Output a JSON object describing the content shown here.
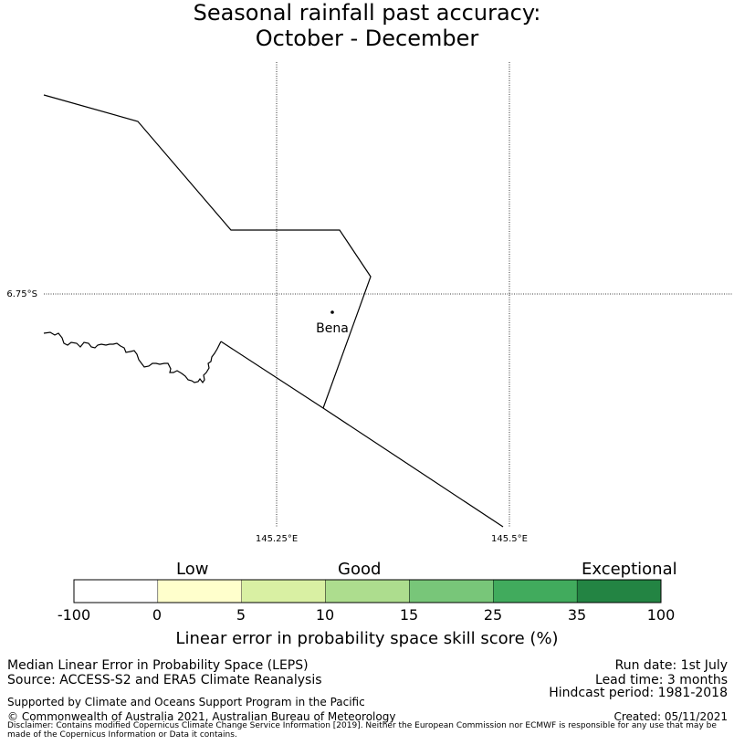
{
  "title": {
    "line1": "Seasonal rainfall past accuracy:",
    "line2": "October - December"
  },
  "map": {
    "lat_label": "6.75°S",
    "lon_labels": [
      "145.25°E",
      "145.5°E"
    ],
    "place": "Bena"
  },
  "colorbar": {
    "category_labels": [
      "Low",
      "Good",
      "Exceptional"
    ],
    "ticks": [
      "-100",
      "0",
      "5",
      "10",
      "15",
      "25",
      "35",
      "100"
    ],
    "colors": [
      "#ffffff",
      "#ffffcc",
      "#d9f0a3",
      "#addd8e",
      "#78c679",
      "#41ab5d",
      "#238443"
    ],
    "axis_label": "Linear error in probability space skill score (%)"
  },
  "footer": {
    "left_line1": "Median Linear Error in Probability Space (LEPS)",
    "left_line2": "Source: ACCESS-S2 and ERA5 Climate Reanalysis",
    "right_line1": "Run date: 1st July",
    "right_line2": "Lead time: 3 months",
    "right_line3": "Hindcast period: 1981-2018",
    "support": "Supported by Climate and Oceans Support Program in the Pacific",
    "copyright": "© Commonwealth of Australia 2021, Australian Bureau of Meteorology",
    "created": "Created: 05/11/2021",
    "disclaimer": "Disclaimer: Contains modified Copernicus Climate Change Service Information [2019]. Neither the European Commission nor ECMWF is responsible for any use that may be made of the Copernicus Information or Data it contains."
  }
}
